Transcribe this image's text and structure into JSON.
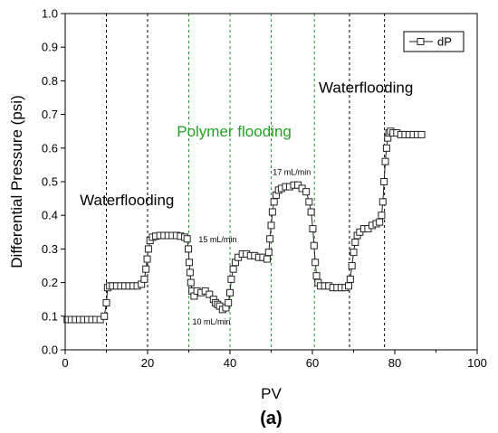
{
  "chart_data": {
    "type": "line",
    "xlabel": "PV",
    "ylabel": "Differential Pressure (psi)",
    "panel_label": "(a)",
    "xlim": [
      0,
      100
    ],
    "ylim": [
      0,
      1.0
    ],
    "x_ticks": [
      "0",
      "20",
      "40",
      "60",
      "80",
      "100"
    ],
    "y_ticks": [
      "0.0",
      "0.1",
      "0.2",
      "0.3",
      "0.4",
      "0.5",
      "0.6",
      "0.7",
      "0.8",
      "0.9",
      "1.0"
    ],
    "grid": false,
    "legend": {
      "position": "top-right",
      "entries": [
        "dP"
      ]
    },
    "colors": {
      "series": "#222222",
      "black_line": "#000000",
      "green_line": "#2a9a2a",
      "green_text": "#22a022"
    },
    "vlines": [
      {
        "x": 10,
        "color": "black"
      },
      {
        "x": 20,
        "color": "black"
      },
      {
        "x": 30,
        "color": "green"
      },
      {
        "x": 40,
        "color": "green"
      },
      {
        "x": 50,
        "color": "green"
      },
      {
        "x": 60.5,
        "color": "green"
      },
      {
        "x": 69,
        "color": "black"
      },
      {
        "x": 77.5,
        "color": "black"
      }
    ],
    "annotations": [
      {
        "text": "Waterflooding",
        "x": 15,
        "y": 0.43,
        "color": "black",
        "size": "big"
      },
      {
        "text": "Polymer flooding",
        "x": 41,
        "y": 0.635,
        "color": "green",
        "size": "big"
      },
      {
        "text": "Waterflooding",
        "x": 73,
        "y": 0.765,
        "color": "black",
        "size": "big"
      },
      {
        "text": "17 mL/min",
        "x": 55,
        "y": 0.52,
        "color": "black",
        "size": "small"
      },
      {
        "text": "15 mL/min",
        "x": 37,
        "y": 0.32,
        "color": "black",
        "size": "small"
      },
      {
        "text": "10 mL/min",
        "x": 35.5,
        "y": 0.075,
        "color": "black",
        "size": "small"
      }
    ],
    "series": [
      {
        "name": "dP",
        "x": [
          0.5,
          1.5,
          2.5,
          3.5,
          4.5,
          5.5,
          6.5,
          7.5,
          8.5,
          9.5,
          10.0,
          10.3,
          10.8,
          11.5,
          12.5,
          13.5,
          14.5,
          15.5,
          16.5,
          17.5,
          18.5,
          19.2,
          19.6,
          19.9,
          20.2,
          20.6,
          21.2,
          22,
          23,
          24,
          25,
          26,
          27,
          28,
          29,
          29.6,
          29.9,
          30.1,
          30.3,
          30.5,
          30.8,
          31.3,
          32,
          33,
          34,
          35,
          36,
          36.5,
          37,
          37.5,
          38.2,
          39,
          39.6,
          40.0,
          40.3,
          40.8,
          41.3,
          42,
          43,
          44,
          45,
          46,
          47,
          48,
          49,
          49.4,
          49.7,
          50.0,
          50.3,
          50.7,
          51.2,
          51.8,
          52.5,
          53.5,
          54.5,
          55.5,
          56.5,
          57.5,
          58.5,
          59.2,
          59.7,
          60.1,
          60.4,
          60.7,
          61.0,
          61.4,
          62,
          63,
          64,
          65,
          66,
          67,
          68,
          68.8,
          69.2,
          69.6,
          70.0,
          70.4,
          70.9,
          71.5,
          72.5,
          73.5,
          74.5,
          75.5,
          76.3,
          76.8,
          77.1,
          77.4,
          77.7,
          78.0,
          78.3,
          78.6,
          79.0,
          79.6,
          80.5,
          81.5,
          82.5,
          83.5,
          84.5,
          85.5,
          86.5
        ],
        "values": [
          0.09,
          0.09,
          0.09,
          0.09,
          0.09,
          0.09,
          0.09,
          0.09,
          0.09,
          0.1,
          0.14,
          0.185,
          0.19,
          0.19,
          0.19,
          0.19,
          0.19,
          0.19,
          0.19,
          0.19,
          0.195,
          0.21,
          0.24,
          0.27,
          0.3,
          0.325,
          0.335,
          0.338,
          0.34,
          0.34,
          0.34,
          0.34,
          0.34,
          0.338,
          0.335,
          0.33,
          0.3,
          0.26,
          0.23,
          0.2,
          0.175,
          0.16,
          0.175,
          0.17,
          0.175,
          0.165,
          0.15,
          0.14,
          0.135,
          0.13,
          0.12,
          0.125,
          0.14,
          0.17,
          0.21,
          0.24,
          0.26,
          0.275,
          0.285,
          0.285,
          0.28,
          0.28,
          0.275,
          0.275,
          0.27,
          0.29,
          0.33,
          0.37,
          0.41,
          0.44,
          0.46,
          0.475,
          0.48,
          0.485,
          0.485,
          0.49,
          0.49,
          0.48,
          0.47,
          0.44,
          0.41,
          0.36,
          0.31,
          0.26,
          0.22,
          0.2,
          0.19,
          0.19,
          0.19,
          0.185,
          0.185,
          0.185,
          0.185,
          0.19,
          0.21,
          0.25,
          0.29,
          0.32,
          0.34,
          0.35,
          0.36,
          0.36,
          0.37,
          0.375,
          0.38,
          0.4,
          0.44,
          0.5,
          0.56,
          0.6,
          0.63,
          0.645,
          0.65,
          0.645,
          0.645,
          0.64,
          0.64,
          0.64,
          0.64,
          0.64,
          0.64
        ]
      }
    ]
  }
}
